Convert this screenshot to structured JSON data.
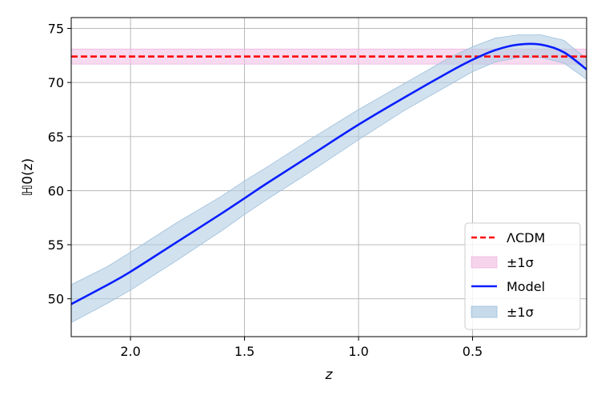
{
  "chart_data": {
    "type": "line",
    "xlabel": "z",
    "ylabel": "ℍ0(z)",
    "x_reversed": true,
    "xlim": [
      2.26,
      0.0
    ],
    "ylim": [
      46.5,
      76.0
    ],
    "x_ticks": [
      2.0,
      1.5,
      1.0,
      0.5
    ],
    "x_tick_labels": [
      "2.0",
      "1.5",
      "1.0",
      "0.5"
    ],
    "y_ticks": [
      50,
      55,
      60,
      65,
      70,
      75
    ],
    "y_tick_labels": [
      "50",
      "55",
      "60",
      "65",
      "70",
      "75"
    ],
    "grid": true,
    "legend_position": "lower-right",
    "colors": {
      "lcdm_line": "#ff0000",
      "lcdm_band": "#f3c6e6",
      "model_line": "#0a1eff",
      "model_band": "#b3cde3"
    },
    "series": [
      {
        "name": "ΛCDM",
        "kind": "hline",
        "value": 72.4,
        "band_label": "±1σ",
        "band": [
          71.7,
          73.1
        ]
      },
      {
        "name": "Model",
        "kind": "curve",
        "band_label": "±1σ",
        "x": [
          2.26,
          2.1,
          2.0,
          1.8,
          1.6,
          1.5,
          1.4,
          1.2,
          1.0,
          0.8,
          0.6,
          0.5,
          0.4,
          0.3,
          0.2,
          0.1,
          0.0
        ],
        "y": [
          49.5,
          51.3,
          52.5,
          55.2,
          57.9,
          59.3,
          60.7,
          63.4,
          66.1,
          68.6,
          71.0,
          72.1,
          73.0,
          73.5,
          73.5,
          72.8,
          71.2
        ],
        "lower": [
          47.8,
          49.6,
          50.8,
          53.5,
          56.3,
          57.8,
          59.2,
          61.9,
          64.7,
          67.4,
          69.8,
          71.0,
          71.9,
          72.3,
          72.3,
          71.8,
          70.3
        ],
        "upper": [
          51.3,
          53.0,
          54.3,
          57.0,
          59.5,
          60.9,
          62.2,
          64.9,
          67.5,
          69.9,
          72.3,
          73.3,
          74.1,
          74.4,
          74.4,
          73.9,
          72.2
        ]
      }
    ]
  }
}
